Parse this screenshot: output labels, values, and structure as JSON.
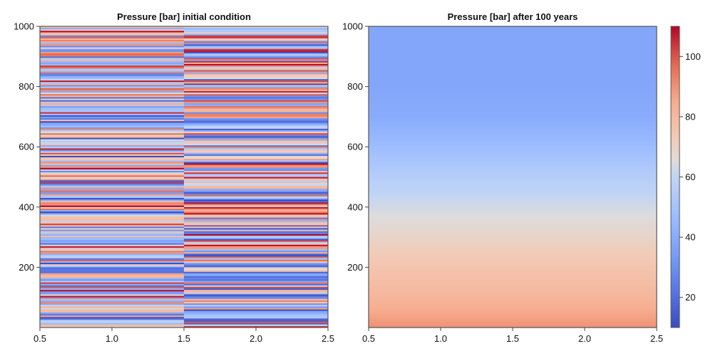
{
  "chart_data": [
    {
      "type": "heatmap",
      "title": "Pressure [bar] initial condition",
      "xlabel": "",
      "ylabel": "",
      "xlim": [
        0.5,
        2.5
      ],
      "ylim": [
        0,
        1000
      ],
      "x_ticks": [
        "0.5",
        "1.0",
        "1.5",
        "2.0",
        "2.5"
      ],
      "y_ticks": [
        "200",
        "400",
        "600",
        "800",
        "1000"
      ],
      "columns": [
        1,
        2
      ],
      "description": "Two columns (x=1 and x=2) of horizontally layered random pressure values between ~10 and ~110 bar",
      "value_range": [
        10,
        110
      ],
      "colormap": "coolwarm",
      "grid": false
    },
    {
      "type": "heatmap",
      "title": "Pressure [bar] after 100 years",
      "xlabel": "",
      "ylabel": "",
      "xlim": [
        0.5,
        2.5
      ],
      "ylim": [
        0,
        1000
      ],
      "x_ticks": [
        "0.5",
        "1.0",
        "1.5",
        "2.0",
        "2.5"
      ],
      "y_ticks": [
        "200",
        "400",
        "600",
        "800",
        "1000"
      ],
      "profile": {
        "depth": [
          0,
          100,
          200,
          300,
          400,
          500,
          600,
          700,
          800,
          900,
          1000
        ],
        "pressure": [
          90,
          81,
          75,
          69,
          63,
          56,
          47,
          40,
          38,
          38,
          38
        ]
      },
      "colormap": "coolwarm",
      "grid": false
    }
  ],
  "colorbar": {
    "range": [
      10,
      110
    ],
    "ticks": [
      "20",
      "40",
      "60",
      "80",
      "100"
    ],
    "colormap": "coolwarm",
    "colors": {
      "low": "#3b4cc0",
      "mid": "#dddddd",
      "high": "#b40426"
    }
  }
}
